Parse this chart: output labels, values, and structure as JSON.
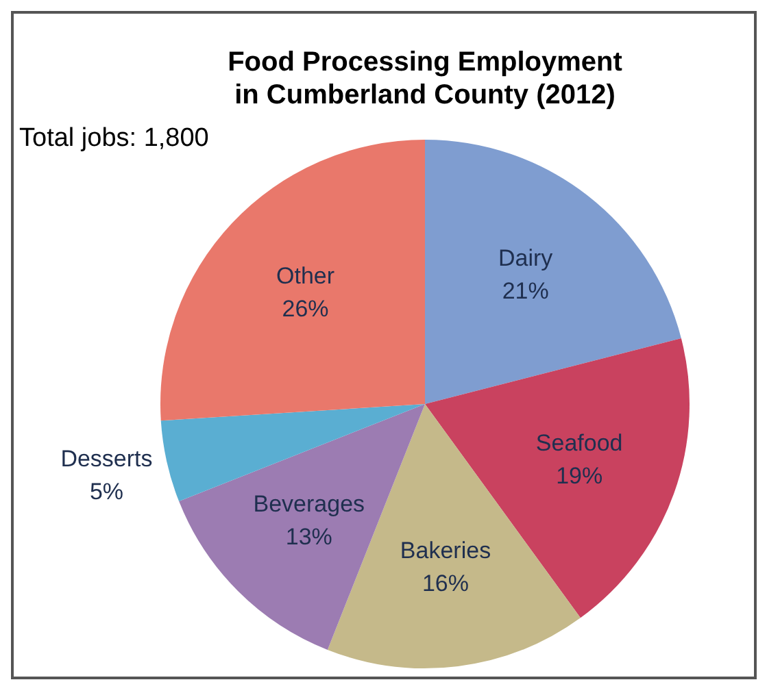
{
  "chart_data": {
    "type": "pie",
    "title": [
      "Food Processing Employment",
      "in Cumberland County (2012)"
    ],
    "categories": [
      "Dairy",
      "Seafood",
      "Bakeries",
      "Beverages",
      "Desserts",
      "Other"
    ],
    "values": [
      21,
      19,
      16,
      13,
      5,
      26
    ],
    "value_labels": [
      "21%",
      "19%",
      "16%",
      "13%",
      "5%",
      "26%"
    ],
    "colors": [
      "#7f9dd0",
      "#c9425f",
      "#c5b98a",
      "#9c7cb2",
      "#5aaed2",
      "#e9786b"
    ],
    "annotations": [
      "Total jobs: 1,800"
    ],
    "legend": false
  }
}
